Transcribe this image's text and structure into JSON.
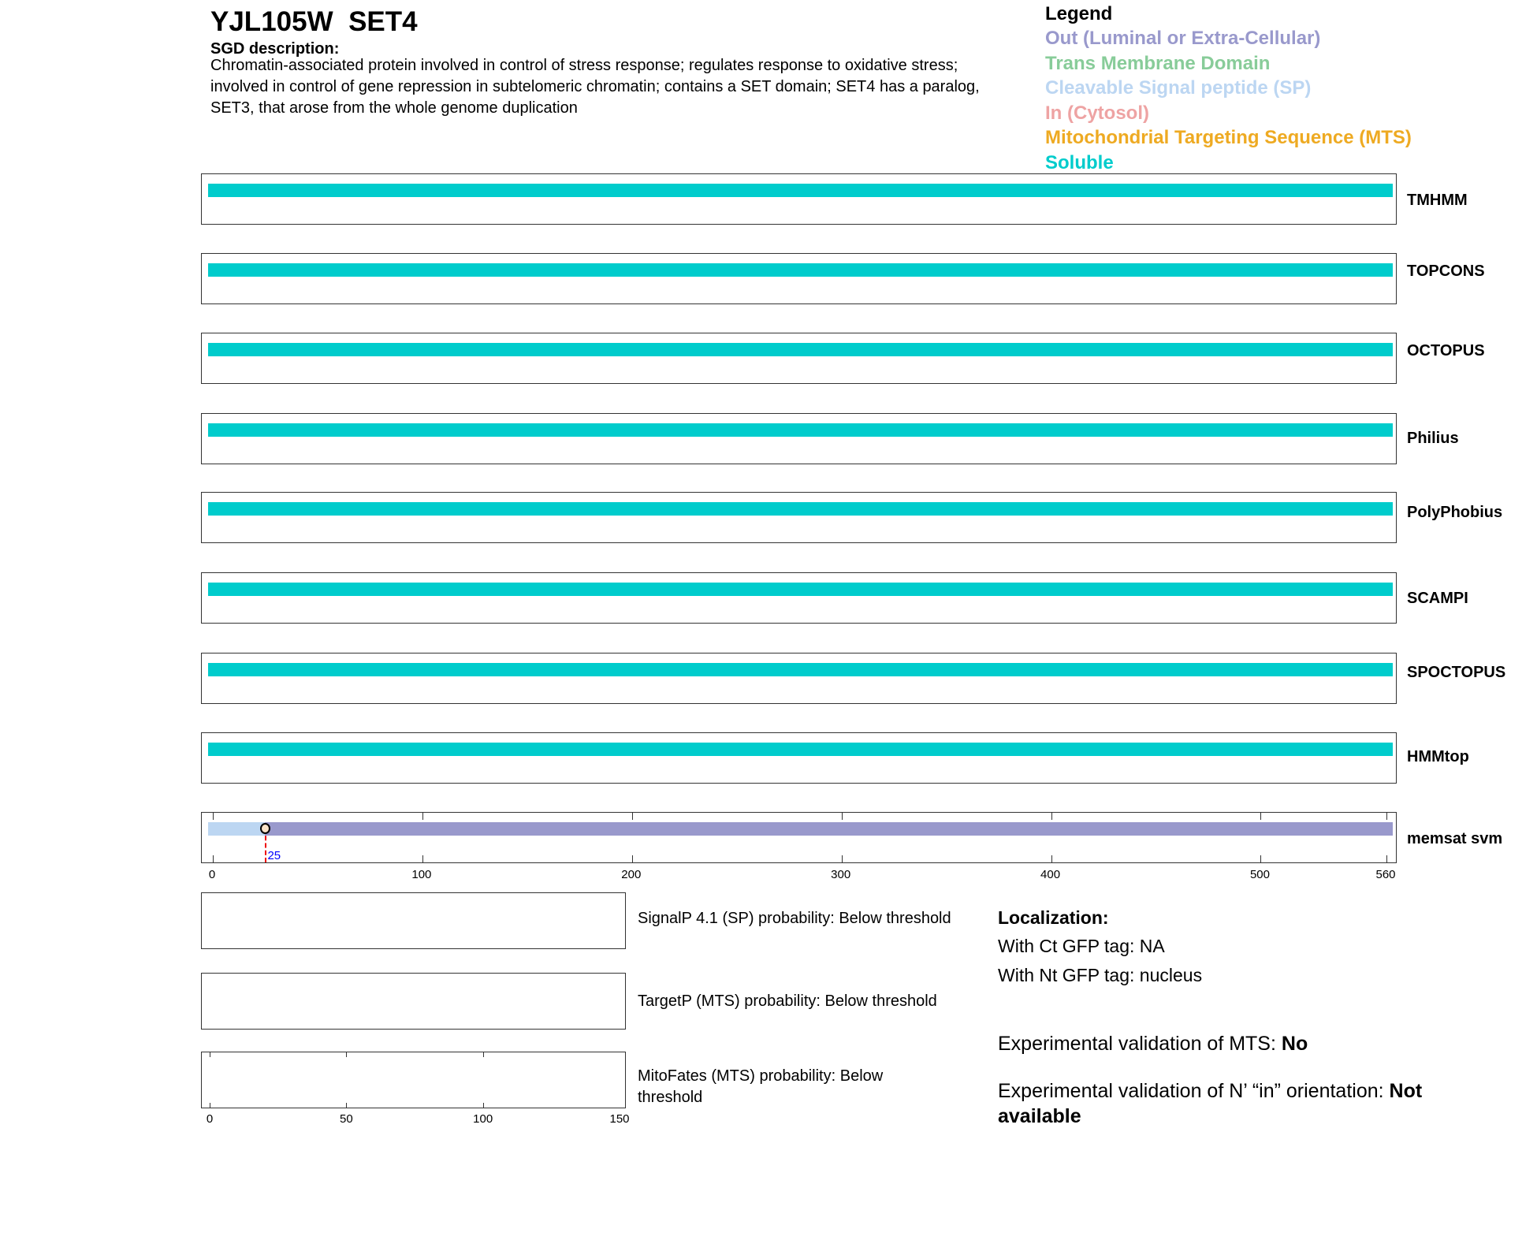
{
  "header": {
    "title": "YJL105W  SET4",
    "desc_heading": "SGD description:",
    "description": "Chromatin-associated protein involved in control of stress response; regulates response to oxidative stress; involved in control of gene repression in subtelomeric chromatin; contains a SET domain; SET4 has a paralog, SET3, that arose from the whole genome duplication"
  },
  "legend": {
    "title": "Legend",
    "items": [
      {
        "label": "Out (Luminal or Extra-Cellular)",
        "color": "#9999cc"
      },
      {
        "label": "Trans Membrane Domain",
        "color": "#88cc99"
      },
      {
        "label": "Cleavable Signal peptide (SP)",
        "color": "#bcd6f2"
      },
      {
        "label": "In (Cytosol)",
        "color": "#eea3a3"
      },
      {
        "label": "Mitochondrial Targeting Sequence (MTS)",
        "color": "#eeaa22"
      },
      {
        "label": "Soluble",
        "color": "#00cccc"
      }
    ]
  },
  "chart_data": {
    "type": "bar",
    "protein_length": 560,
    "tracks": [
      {
        "name": "TMHMM",
        "segments": [
          {
            "start": 0,
            "end": 560,
            "type": "Soluble"
          }
        ]
      },
      {
        "name": "TOPCONS",
        "segments": [
          {
            "start": 0,
            "end": 560,
            "type": "Soluble"
          }
        ]
      },
      {
        "name": "OCTOPUS",
        "segments": [
          {
            "start": 0,
            "end": 560,
            "type": "Soluble"
          }
        ]
      },
      {
        "name": "Philius",
        "segments": [
          {
            "start": 0,
            "end": 560,
            "type": "Soluble"
          }
        ]
      },
      {
        "name": "PolyPhobius",
        "segments": [
          {
            "start": 0,
            "end": 560,
            "type": "Soluble"
          }
        ]
      },
      {
        "name": "SCAMPI",
        "segments": [
          {
            "start": 0,
            "end": 560,
            "type": "Soluble"
          }
        ]
      },
      {
        "name": "SPOCTOPUS",
        "segments": [
          {
            "start": 0,
            "end": 560,
            "type": "Soluble"
          }
        ]
      },
      {
        "name": "HMMtop",
        "segments": [
          {
            "start": 0,
            "end": 560,
            "type": "Soluble"
          }
        ]
      },
      {
        "name": "memsat svm",
        "segments": [
          {
            "start": 0,
            "end": 25,
            "type": "Cleavable Signal peptide (SP)"
          },
          {
            "start": 25,
            "end": 560,
            "type": "Out (Luminal or Extra-Cellular)"
          }
        ],
        "marker": {
          "position": 25,
          "label": "25"
        }
      }
    ],
    "xticks": [
      0,
      100,
      200,
      300,
      400,
      500,
      560
    ],
    "xlim": [
      0,
      560
    ],
    "prob_xticks": [
      0,
      50,
      100,
      150
    ],
    "prob_xlim": [
      0,
      150
    ]
  },
  "probabilities": [
    "SignalP 4.1 (SP) probability: Below threshold",
    "TargetP (MTS) probability: Below threshold",
    "MitoFates (MTS) probability: Below threshold"
  ],
  "localization": {
    "heading": "Localization:",
    "ct": "With Ct GFP tag: NA",
    "nt": "With Nt GFP tag: nucleus",
    "mts_label": "Experimental validation of MTS: ",
    "mts_value": "No",
    "nin_label": "Experimental validation of N’ “in” orientation: ",
    "nin_value": "Not available"
  }
}
